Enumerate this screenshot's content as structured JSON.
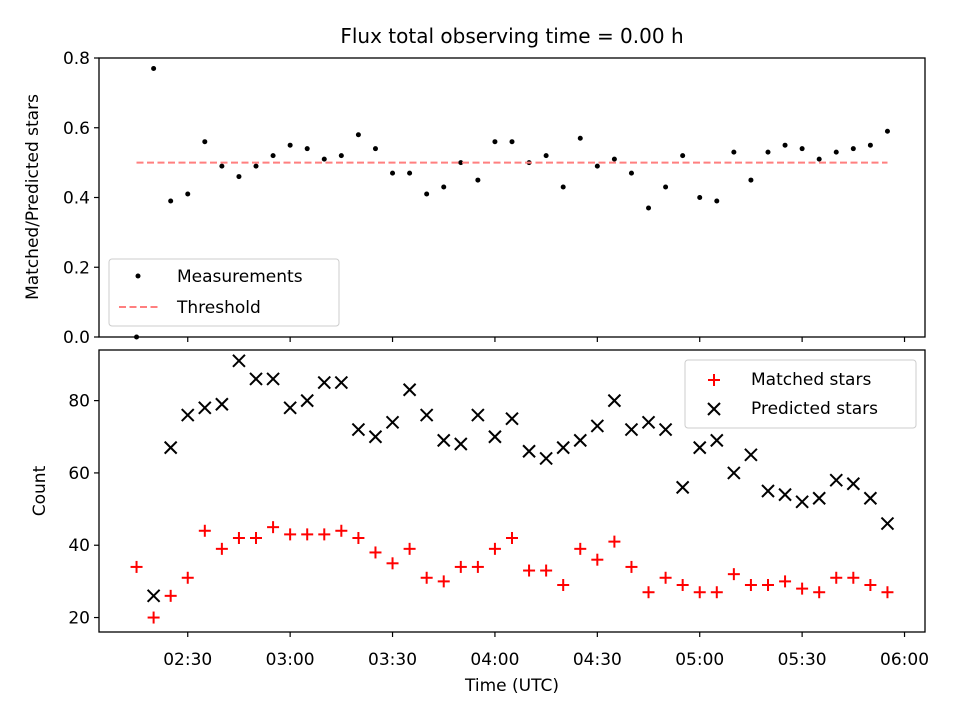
{
  "chart_data": [
    {
      "type": "scatter",
      "title": "Flux total observing time = 0.00 h",
      "xlabel": "",
      "ylabel": "Matched/Predicted stars",
      "ylim": [
        0,
        0.8
      ],
      "yticks": [
        0.0,
        0.2,
        0.4,
        0.6,
        0.8
      ],
      "ytick_labels": [
        "0.0",
        "0.2",
        "0.4",
        "0.6",
        "0.8"
      ],
      "xlim": [
        "02:04",
        "06:06"
      ],
      "legend_position": "lower-left",
      "series": [
        {
          "name": "Measurements",
          "kind": "scatter",
          "marker": "dot",
          "color": "#000000",
          "x": [
            "02:15",
            "02:20",
            "02:25",
            "02:30",
            "02:35",
            "02:40",
            "02:45",
            "02:50",
            "02:55",
            "03:00",
            "03:05",
            "03:10",
            "03:15",
            "03:20",
            "03:25",
            "03:30",
            "03:35",
            "03:40",
            "03:45",
            "03:50",
            "03:55",
            "04:00",
            "04:05",
            "04:10",
            "04:15",
            "04:20",
            "04:25",
            "04:30",
            "04:35",
            "04:40",
            "04:45",
            "04:50",
            "04:55",
            "05:00",
            "05:05",
            "05:10",
            "05:15",
            "05:20",
            "05:25",
            "05:30",
            "05:35",
            "05:40",
            "05:45",
            "05:50",
            "05:55"
          ],
          "y": [
            0.0,
            0.77,
            0.39,
            0.41,
            0.56,
            0.49,
            0.46,
            0.49,
            0.52,
            0.55,
            0.54,
            0.51,
            0.52,
            0.58,
            0.54,
            0.47,
            0.47,
            0.41,
            0.43,
            0.5,
            0.45,
            0.56,
            0.56,
            0.5,
            0.52,
            0.43,
            0.57,
            0.49,
            0.51,
            0.47,
            0.37,
            0.43,
            0.52,
            0.4,
            0.39,
            0.53,
            0.45,
            0.53,
            0.55,
            0.54,
            0.51,
            0.53,
            0.54,
            0.55,
            0.59
          ]
        },
        {
          "name": "Threshold",
          "kind": "line",
          "style": "dashed",
          "color": "#ff7f7f",
          "x": [
            "02:15",
            "05:55"
          ],
          "y": [
            0.5,
            0.5
          ]
        }
      ]
    },
    {
      "type": "scatter",
      "title": "",
      "xlabel": "Time (UTC)",
      "ylabel": "Count",
      "ylim": [
        16,
        94
      ],
      "yticks": [
        20,
        40,
        60,
        80
      ],
      "ytick_labels": [
        "20",
        "40",
        "60",
        "80"
      ],
      "xlim": [
        "02:04",
        "06:06"
      ],
      "xticks": [
        "02:30",
        "03:00",
        "03:30",
        "04:00",
        "04:30",
        "05:00",
        "05:30",
        "06:00"
      ],
      "xtick_labels": [
        "02:30",
        "03:00",
        "03:30",
        "04:00",
        "04:30",
        "05:00",
        "05:30",
        "06:00"
      ],
      "legend_position": "upper-right",
      "series": [
        {
          "name": "Matched stars",
          "kind": "scatter",
          "marker": "plus",
          "color": "#ff0000",
          "x": [
            "02:15",
            "02:20",
            "02:25",
            "02:30",
            "02:35",
            "02:40",
            "02:45",
            "02:50",
            "02:55",
            "03:00",
            "03:05",
            "03:10",
            "03:15",
            "03:20",
            "03:25",
            "03:30",
            "03:35",
            "03:40",
            "03:45",
            "03:50",
            "03:55",
            "04:00",
            "04:05",
            "04:10",
            "04:15",
            "04:20",
            "04:25",
            "04:30",
            "04:35",
            "04:40",
            "04:45",
            "04:50",
            "04:55",
            "05:00",
            "05:05",
            "05:10",
            "05:15",
            "05:20",
            "05:25",
            "05:30",
            "05:35",
            "05:40",
            "05:45",
            "05:50",
            "05:55"
          ],
          "y": [
            34,
            20,
            26,
            31,
            44,
            39,
            42,
            42,
            45,
            43,
            43,
            43,
            44,
            42,
            38,
            35,
            39,
            31,
            30,
            34,
            34,
            39,
            42,
            33,
            33,
            29,
            39,
            36,
            41,
            34,
            27,
            31,
            29,
            27,
            27,
            32,
            29,
            29,
            30,
            28,
            27,
            31,
            31,
            29,
            27
          ]
        },
        {
          "name": "Predicted stars",
          "kind": "scatter",
          "marker": "x",
          "color": "#000000",
          "x": [
            "02:20",
            "02:25",
            "02:30",
            "02:35",
            "02:40",
            "02:45",
            "02:50",
            "02:55",
            "03:00",
            "03:05",
            "03:10",
            "03:15",
            "03:20",
            "03:25",
            "03:30",
            "03:35",
            "03:40",
            "03:45",
            "03:50",
            "03:55",
            "04:00",
            "04:05",
            "04:10",
            "04:15",
            "04:20",
            "04:25",
            "04:30",
            "04:35",
            "04:40",
            "04:45",
            "04:50",
            "04:55",
            "05:00",
            "05:05",
            "05:10",
            "05:15",
            "05:20",
            "05:25",
            "05:30",
            "05:35",
            "05:40",
            "05:45",
            "05:50",
            "05:55"
          ],
          "y": [
            26,
            67,
            76,
            78,
            79,
            91,
            86,
            86,
            78,
            80,
            85,
            85,
            72,
            70,
            74,
            83,
            76,
            69,
            68,
            76,
            70,
            75,
            66,
            64,
            67,
            69,
            73,
            80,
            72,
            74,
            72,
            56,
            67,
            69,
            60,
            65,
            55,
            54,
            52,
            53,
            58,
            57,
            53,
            46
          ]
        }
      ]
    }
  ]
}
